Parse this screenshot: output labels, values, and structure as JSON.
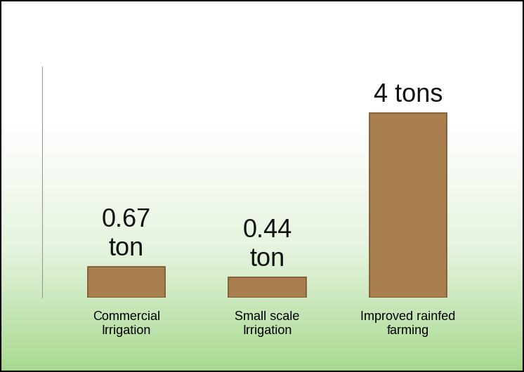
{
  "chart_data": {
    "type": "bar",
    "categories": [
      "Commercial\nIrrigation",
      "Small scale\nIrrigation",
      "Improved rainfed\nfarming"
    ],
    "values": [
      0.67,
      0.44,
      4
    ],
    "value_labels": [
      "0.67\nton",
      "0.44\nton",
      "4 tons"
    ],
    "data_labels": true,
    "color": "#a97e4f",
    "ylim": [
      0,
      5
    ],
    "yticks": [],
    "tick_labels": false,
    "grid": false
  }
}
